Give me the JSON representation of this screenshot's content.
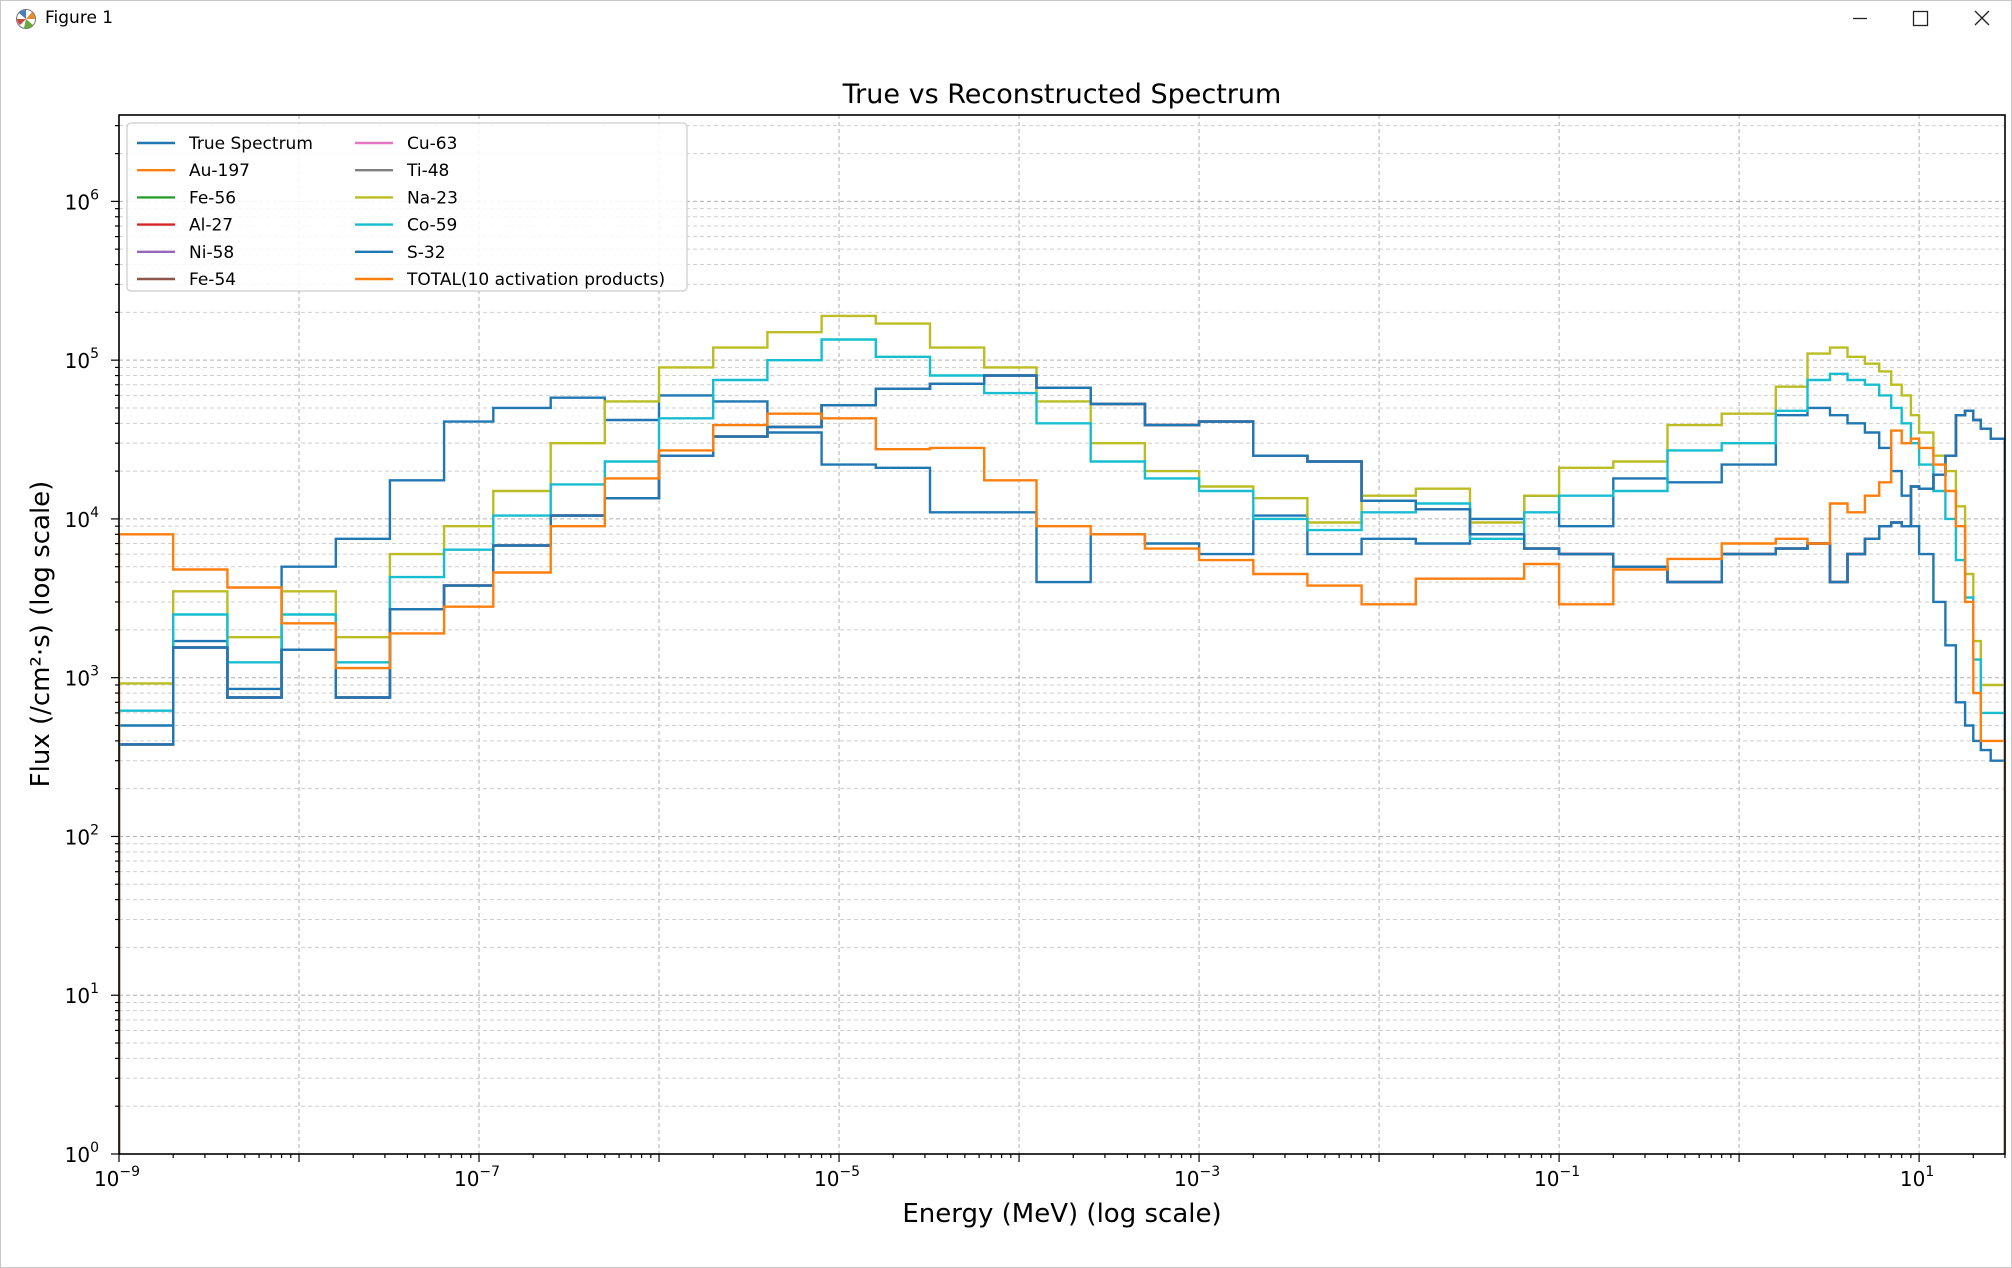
{
  "window": {
    "title": "Figure 1",
    "icons": [
      "matplotlib-logo-icon",
      "minimize-icon",
      "maximize-icon",
      "close-icon"
    ]
  },
  "colors": {
    "True Spectrum": "#1f77b4",
    "Au-197": "#ff7f0e",
    "Fe-56": "#2ca02c",
    "Al-27": "#d62728",
    "Ni-58": "#9467bd",
    "Fe-54": "#8c564b",
    "Cu-63": "#e377c2",
    "Ti-48": "#7f7f7f",
    "Na-23": "#bcbd22",
    "Co-59": "#17becf",
    "S-32": "#1f77b4",
    "TOTAL(10 activation products)": "#ff7f0e"
  },
  "chart_data": {
    "type": "line",
    "step": true,
    "title": "True vs Reconstructed Spectrum",
    "xlabel": "Energy (MeV) (log scale)",
    "ylabel": "Flux (/cm²·s) (log scale)",
    "xscale": "log",
    "yscale": "log",
    "xlim": [
      1e-09,
      30
    ],
    "ylim": [
      1,
      3500000
    ],
    "x_ticks": [
      {
        "base": "10",
        "exp": "−9"
      },
      {
        "base": "10",
        "exp": "−7"
      },
      {
        "base": "10",
        "exp": "−5"
      },
      {
        "base": "10",
        "exp": "−3"
      },
      {
        "base": "10",
        "exp": "−1"
      },
      {
        "base": "10",
        "exp": "1"
      }
    ],
    "y_ticks": [
      {
        "base": "10",
        "exp": "0"
      },
      {
        "base": "10",
        "exp": "1"
      },
      {
        "base": "10",
        "exp": "2"
      },
      {
        "base": "10",
        "exp": "3"
      },
      {
        "base": "10",
        "exp": "4"
      },
      {
        "base": "10",
        "exp": "5"
      },
      {
        "base": "10",
        "exp": "6"
      }
    ],
    "grid": true,
    "legend_position": "upper left",
    "legend_columns": 2,
    "x_edges": [
      1e-09,
      2e-09,
      4e-09,
      8e-09,
      1.6e-08,
      3.2e-08,
      6.4e-08,
      1.2e-07,
      2.5e-07,
      5e-07,
      1e-06,
      2e-06,
      4e-06,
      8e-06,
      1.6e-05,
      3.2e-05,
      6.4e-05,
      0.000125,
      0.00025,
      0.0005,
      0.001,
      0.002,
      0.004,
      0.008,
      0.016,
      0.032,
      0.064,
      0.1,
      0.2,
      0.4,
      0.8,
      1.6,
      2.4,
      3.2,
      4,
      5,
      6,
      7,
      8,
      9,
      10,
      12,
      14,
      16,
      18,
      20,
      22,
      25,
      30
    ],
    "series": [
      {
        "name": "True Spectrum",
        "values": [
          500,
          1700,
          850,
          5000,
          7500,
          17500,
          41000,
          50000,
          58000,
          42000,
          60000,
          55000,
          35000,
          22000,
          21000,
          11000,
          11000,
          4000,
          8000,
          7000,
          6000,
          10500,
          6000,
          7500,
          7000,
          10000,
          14000,
          9000,
          18000,
          17000,
          22000,
          45000,
          50000,
          45000,
          40000,
          35000,
          28000,
          20000,
          14000,
          9000,
          6000,
          3000,
          1600,
          700,
          500,
          400,
          350,
          300
        ]
      },
      {
        "name": "Au-197",
        "values": [
          380,
          1550,
          750,
          1500,
          750,
          2700,
          3800,
          6800,
          10500,
          13500,
          25000,
          33000,
          38000,
          52000,
          66000,
          71000,
          80000,
          67000,
          53000,
          39000,
          41000,
          25000,
          23000,
          13000,
          11500,
          8000,
          6500,
          6000,
          5000,
          4000,
          6000,
          6500,
          7000,
          4000,
          6000,
          7500,
          9000,
          9500,
          9000,
          16000,
          15500,
          19000,
          25000,
          45000,
          48000,
          42000,
          37000,
          32000
        ]
      },
      {
        "name": "Fe-56",
        "values": [
          380,
          1550,
          750,
          1500,
          750,
          2700,
          3800,
          6800,
          10500,
          13500,
          25000,
          33000,
          38000,
          52000,
          66000,
          71000,
          80000,
          67000,
          53000,
          39000,
          41000,
          25000,
          23000,
          13000,
          11500,
          8000,
          6500,
          6000,
          5000,
          4000,
          6000,
          6500,
          7000,
          4000,
          6000,
          7500,
          9000,
          9500,
          9000,
          16000,
          15500,
          19000,
          25000,
          45000,
          48000,
          42000,
          37000,
          32000
        ]
      },
      {
        "name": "Al-27",
        "values": [
          380,
          1550,
          750,
          1500,
          750,
          2700,
          3800,
          6800,
          10500,
          13500,
          25000,
          33000,
          38000,
          52000,
          66000,
          71000,
          80000,
          67000,
          53000,
          39000,
          41000,
          25000,
          23000,
          13000,
          11500,
          8000,
          6500,
          6000,
          5000,
          4000,
          6000,
          6500,
          7000,
          4000,
          6000,
          7500,
          9000,
          9500,
          9000,
          16000,
          15500,
          19000,
          25000,
          45000,
          48000,
          42000,
          37000,
          32000
        ]
      },
      {
        "name": "Ni-58",
        "values": [
          380,
          1550,
          750,
          1500,
          750,
          2700,
          3800,
          6800,
          10500,
          13500,
          25000,
          33000,
          38000,
          52000,
          66000,
          71000,
          80000,
          67000,
          53000,
          39000,
          41000,
          25000,
          23000,
          13000,
          11500,
          8000,
          6500,
          6000,
          5000,
          4000,
          6000,
          6500,
          7000,
          4000,
          6000,
          7500,
          9000,
          9500,
          9000,
          16000,
          15500,
          19000,
          25000,
          45000,
          48000,
          42000,
          37000,
          32000
        ]
      },
      {
        "name": "Fe-54",
        "values": [
          380,
          1550,
          750,
          1500,
          750,
          2700,
          3800,
          6800,
          10500,
          13500,
          25000,
          33000,
          38000,
          52000,
          66000,
          71000,
          80000,
          67000,
          53000,
          39000,
          41000,
          25000,
          23000,
          13000,
          11500,
          8000,
          6500,
          6000,
          5000,
          4000,
          6000,
          6500,
          7000,
          4000,
          6000,
          7500,
          9000,
          9500,
          9000,
          16000,
          15500,
          19000,
          25000,
          45000,
          48000,
          42000,
          37000,
          32000
        ]
      },
      {
        "name": "Cu-63",
        "values": [
          380,
          1550,
          750,
          1500,
          750,
          2700,
          3800,
          6800,
          10500,
          13500,
          25000,
          33000,
          38000,
          52000,
          66000,
          71000,
          80000,
          67000,
          53000,
          39000,
          41000,
          25000,
          23000,
          13000,
          11500,
          8000,
          6500,
          6000,
          5000,
          4000,
          6000,
          6500,
          7000,
          4000,
          6000,
          7500,
          9000,
          9500,
          9000,
          16000,
          15500,
          19000,
          25000,
          45000,
          48000,
          42000,
          37000,
          32000
        ]
      },
      {
        "name": "Ti-48",
        "values": [
          380,
          1550,
          750,
          1500,
          750,
          2700,
          3800,
          6800,
          10500,
          13500,
          25000,
          33000,
          38000,
          52000,
          66000,
          71000,
          80000,
          67000,
          53000,
          39000,
          41000,
          25000,
          23000,
          13000,
          11500,
          8000,
          6500,
          6000,
          5000,
          4000,
          6000,
          6500,
          7000,
          4000,
          6000,
          7500,
          9000,
          9500,
          9000,
          16000,
          15500,
          19000,
          25000,
          45000,
          48000,
          42000,
          37000,
          32000
        ]
      },
      {
        "name": "Na-23",
        "values": [
          920,
          3500,
          1800,
          3500,
          1800,
          6000,
          9000,
          15000,
          30000,
          55000,
          90000,
          120000,
          150000,
          190000,
          170000,
          120000,
          90000,
          55000,
          30000,
          20000,
          16000,
          13500,
          9500,
          14000,
          15500,
          9500,
          14000,
          21000,
          23000,
          39000,
          46000,
          68000,
          110000,
          120000,
          105000,
          95000,
          85000,
          70000,
          60000,
          45000,
          35000,
          25000,
          20000,
          12000,
          4500,
          1700,
          900,
          900
        ]
      },
      {
        "name": "Co-59",
        "values": [
          620,
          2500,
          1250,
          2500,
          1250,
          4300,
          6400,
          10500,
          16500,
          23000,
          43000,
          75000,
          100000,
          135000,
          105000,
          80000,
          62000,
          40000,
          23000,
          18000,
          15000,
          10000,
          8500,
          11000,
          12500,
          7500,
          11000,
          14000,
          15000,
          27000,
          30000,
          48000,
          75000,
          82000,
          75000,
          70000,
          60000,
          50000,
          40000,
          30000,
          22000,
          15000,
          10000,
          5500,
          3200,
          1300,
          600,
          600
        ]
      },
      {
        "name": "S-32",
        "values": [
          380,
          1550,
          750,
          1500,
          750,
          2700,
          3800,
          6800,
          10500,
          13500,
          25000,
          33000,
          38000,
          52000,
          66000,
          71000,
          80000,
          67000,
          53000,
          39000,
          41000,
          25000,
          23000,
          13000,
          11500,
          8000,
          6500,
          6000,
          5000,
          4000,
          6000,
          6500,
          7000,
          4000,
          6000,
          7500,
          9000,
          9500,
          9000,
          16000,
          15500,
          19000,
          25000,
          45000,
          48000,
          42000,
          37000,
          32000
        ]
      },
      {
        "name": "TOTAL(10 activation products)",
        "values": [
          8000,
          4800,
          3700,
          2200,
          1150,
          1900,
          2800,
          4600,
          9000,
          18000,
          27000,
          39000,
          46000,
          43000,
          27500,
          28000,
          17500,
          9000,
          8000,
          6500,
          5500,
          4500,
          3800,
          2900,
          4200,
          4200,
          5200,
          2900,
          4800,
          5600,
          7000,
          7500,
          7000,
          12500,
          11000,
          14000,
          17000,
          36000,
          30000,
          32000,
          28000,
          22000,
          15000,
          9000,
          3000,
          800,
          400,
          400
        ]
      }
    ]
  }
}
